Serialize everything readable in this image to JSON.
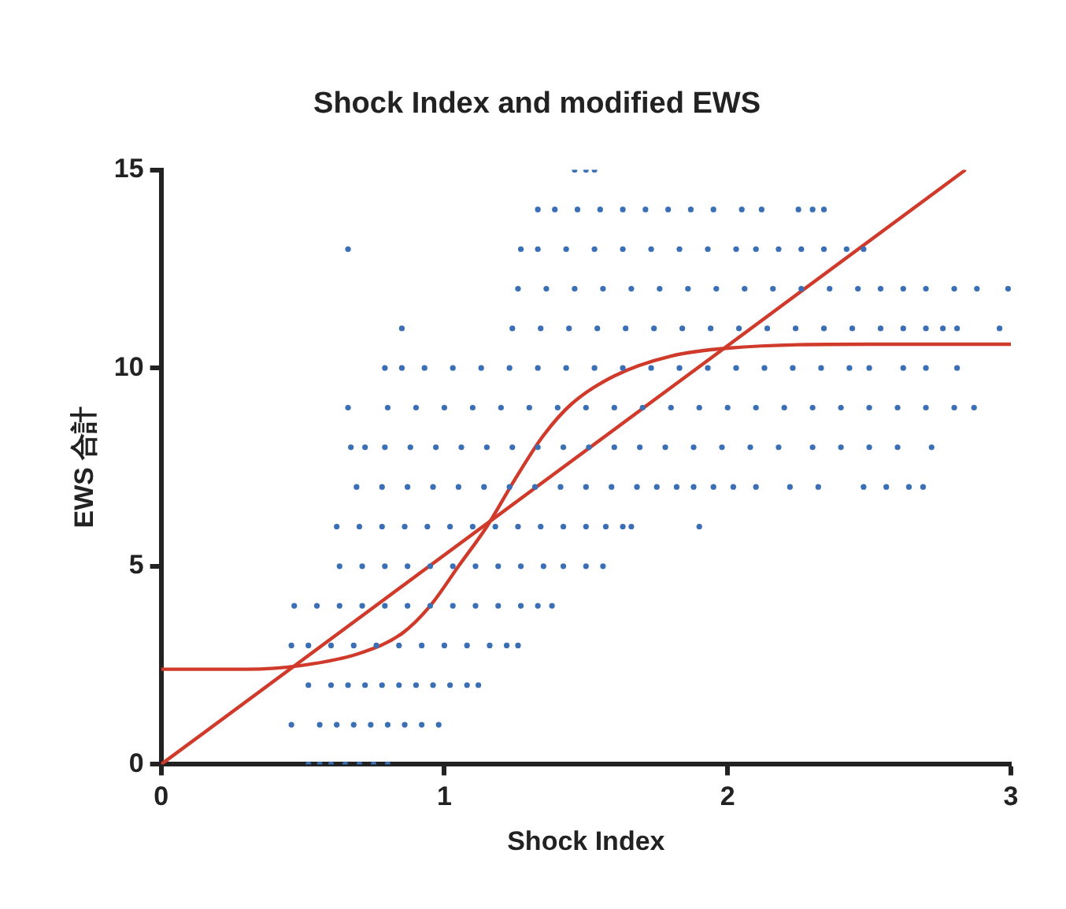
{
  "chart_data": {
    "type": "scatter",
    "title": "Shock Index and modified EWS",
    "xlabel": "Shock Index",
    "ylabel": "EWS 合計",
    "xlim": [
      0,
      3
    ],
    "xticks": [
      0,
      1,
      2,
      3
    ],
    "ylim": [
      0,
      15
    ],
    "yticks": [
      0,
      5,
      10,
      15
    ],
    "grid": false,
    "legend": false,
    "marker": "circle",
    "series": [
      {
        "color": "#3a6fb5",
        "x": [
          0.52,
          0.56,
          0.6,
          0.65,
          0.7,
          0.75,
          0.8
        ],
        "values": [
          0,
          0,
          0,
          0,
          0,
          0,
          0
        ]
      },
      {
        "color": "#3a6fb5",
        "x": [
          0.46,
          0.56,
          0.62,
          0.68,
          0.74,
          0.8,
          0.86,
          0.92,
          0.98
        ],
        "values": [
          1,
          1,
          1,
          1,
          1,
          1,
          1,
          1,
          1
        ]
      },
      {
        "color": "#3a6fb5",
        "x": [
          0.52,
          0.6,
          0.66,
          0.72,
          0.78,
          0.84,
          0.9,
          0.96,
          1.02,
          1.08,
          1.12
        ],
        "values": [
          2,
          2,
          2,
          2,
          2,
          2,
          2,
          2,
          2,
          2,
          2
        ]
      },
      {
        "color": "#3a6fb5",
        "x": [
          0.46,
          0.52,
          0.6,
          0.68,
          0.76,
          0.84,
          0.92,
          1.0,
          1.08,
          1.16,
          1.22,
          1.26
        ],
        "values": [
          3,
          3,
          3,
          3,
          3,
          3,
          3,
          3,
          3,
          3,
          3,
          3
        ]
      },
      {
        "color": "#3a6fb5",
        "x": [
          0.47,
          0.55,
          0.63,
          0.71,
          0.79,
          0.87,
          0.95,
          1.03,
          1.11,
          1.19,
          1.27,
          1.33,
          1.38
        ],
        "values": [
          4,
          4,
          4,
          4,
          4,
          4,
          4,
          4,
          4,
          4,
          4,
          4,
          4
        ]
      },
      {
        "color": "#3a6fb5",
        "x": [
          0.63,
          0.71,
          0.79,
          0.87,
          0.95,
          1.03,
          1.11,
          1.19,
          1.27,
          1.35,
          1.42,
          1.5,
          1.56
        ],
        "values": [
          5,
          5,
          5,
          5,
          5,
          5,
          5,
          5,
          5,
          5,
          5,
          5,
          5
        ]
      },
      {
        "color": "#3a6fb5",
        "x": [
          0.62,
          0.7,
          0.78,
          0.86,
          0.94,
          1.02,
          1.1,
          1.18,
          1.26,
          1.34,
          1.42,
          1.5,
          1.57,
          1.63,
          1.66,
          1.9
        ],
        "values": [
          6,
          6,
          6,
          6,
          6,
          6,
          6,
          6,
          6,
          6,
          6,
          6,
          6,
          6,
          6,
          6
        ]
      },
      {
        "color": "#3a6fb5",
        "x": [
          0.69,
          0.78,
          0.87,
          0.96,
          1.05,
          1.14,
          1.23,
          1.32,
          1.41,
          1.5,
          1.59,
          1.68,
          1.75,
          1.82,
          1.88,
          1.95,
          2.02,
          2.1,
          2.22,
          2.32,
          2.48,
          2.56,
          2.64,
          2.69
        ],
        "values": [
          7,
          7,
          7,
          7,
          7,
          7,
          7,
          7,
          7,
          7,
          7,
          7,
          7,
          7,
          7,
          7,
          7,
          7,
          7,
          7,
          7,
          7,
          7,
          7
        ]
      },
      {
        "color": "#3a6fb5",
        "x": [
          0.67,
          0.72,
          0.79,
          0.88,
          0.97,
          1.06,
          1.15,
          1.24,
          1.33,
          1.42,
          1.51,
          1.6,
          1.69,
          1.78,
          1.88,
          1.98,
          2.08,
          2.18,
          2.3,
          2.4,
          2.5,
          2.6,
          2.72
        ],
        "values": [
          8,
          8,
          8,
          8,
          8,
          8,
          8,
          8,
          8,
          8,
          8,
          8,
          8,
          8,
          8,
          8,
          8,
          8,
          8,
          8,
          8,
          8,
          8
        ]
      },
      {
        "color": "#3a6fb5",
        "x": [
          0.66,
          0.8,
          0.9,
          1.0,
          1.1,
          1.2,
          1.3,
          1.4,
          1.5,
          1.6,
          1.7,
          1.8,
          1.9,
          2.0,
          2.1,
          2.2,
          2.3,
          2.4,
          2.5,
          2.6,
          2.7,
          2.8,
          2.87
        ],
        "values": [
          9,
          9,
          9,
          9,
          9,
          9,
          9,
          9,
          9,
          9,
          9,
          9,
          9,
          9,
          9,
          9,
          9,
          9,
          9,
          9,
          9,
          9,
          9
        ]
      },
      {
        "color": "#3a6fb5",
        "x": [
          0.79,
          0.85,
          0.93,
          1.03,
          1.13,
          1.23,
          1.33,
          1.43,
          1.53,
          1.63,
          1.73,
          1.83,
          1.93,
          2.03,
          2.13,
          2.23,
          2.33,
          2.43,
          2.5,
          2.62,
          2.7,
          2.81
        ],
        "values": [
          10,
          10,
          10,
          10,
          10,
          10,
          10,
          10,
          10,
          10,
          10,
          10,
          10,
          10,
          10,
          10,
          10,
          10,
          10,
          10,
          10,
          10
        ]
      },
      {
        "color": "#3a6fb5",
        "x": [
          0.85,
          1.24,
          1.34,
          1.44,
          1.54,
          1.64,
          1.74,
          1.84,
          1.94,
          2.04,
          2.14,
          2.24,
          2.34,
          2.44,
          2.54,
          2.62,
          2.7,
          2.76,
          2.81,
          2.96
        ],
        "values": [
          11,
          11,
          11,
          11,
          11,
          11,
          11,
          11,
          11,
          11,
          11,
          11,
          11,
          11,
          11,
          11,
          11,
          11,
          11,
          11
        ]
      },
      {
        "color": "#3a6fb5",
        "x": [
          1.26,
          1.36,
          1.46,
          1.56,
          1.66,
          1.76,
          1.86,
          1.96,
          2.06,
          2.16,
          2.26,
          2.36,
          2.46,
          2.54,
          2.62,
          2.7,
          2.8,
          2.88,
          2.99
        ],
        "values": [
          12,
          12,
          12,
          12,
          12,
          12,
          12,
          12,
          12,
          12,
          12,
          12,
          12,
          12,
          12,
          12,
          12,
          12,
          12
        ]
      },
      {
        "color": "#3a6fb5",
        "x": [
          0.66,
          1.27,
          1.33,
          1.43,
          1.53,
          1.63,
          1.73,
          1.83,
          1.93,
          2.03,
          2.1,
          2.18,
          2.26,
          2.34,
          2.42,
          2.48
        ],
        "values": [
          13,
          13,
          13,
          13,
          13,
          13,
          13,
          13,
          13,
          13,
          13,
          13,
          13,
          13,
          13,
          13
        ]
      },
      {
        "color": "#3a6fb5",
        "x": [
          1.33,
          1.39,
          1.47,
          1.55,
          1.63,
          1.71,
          1.79,
          1.87,
          1.95,
          2.05,
          2.12,
          2.25,
          2.3,
          2.34
        ],
        "values": [
          14,
          14,
          14,
          14,
          14,
          14,
          14,
          14,
          14,
          14,
          14,
          14,
          14,
          14
        ]
      },
      {
        "color": "#3a6fb5",
        "x": [
          1.46,
          1.5,
          1.53
        ],
        "values": [
          15,
          15,
          15
        ]
      },
      {
        "type": "line",
        "color": "#d03a2b",
        "marker": "none",
        "x": [
          0,
          2.84
        ],
        "values": [
          0,
          15
        ]
      },
      {
        "type": "line",
        "color": "#d03a2b",
        "marker": "none",
        "x": [
          0,
          0.3,
          0.5,
          0.7,
          0.85,
          0.95,
          1.05,
          1.15,
          1.25,
          1.35,
          1.45,
          1.6,
          1.8,
          2.0,
          2.5,
          3.0
        ],
        "values": [
          2.4,
          2.4,
          2.5,
          2.8,
          3.3,
          4,
          5,
          6,
          7.2,
          8.3,
          9.1,
          9.8,
          10.3,
          10.5,
          10.6,
          10.6
        ]
      }
    ]
  }
}
